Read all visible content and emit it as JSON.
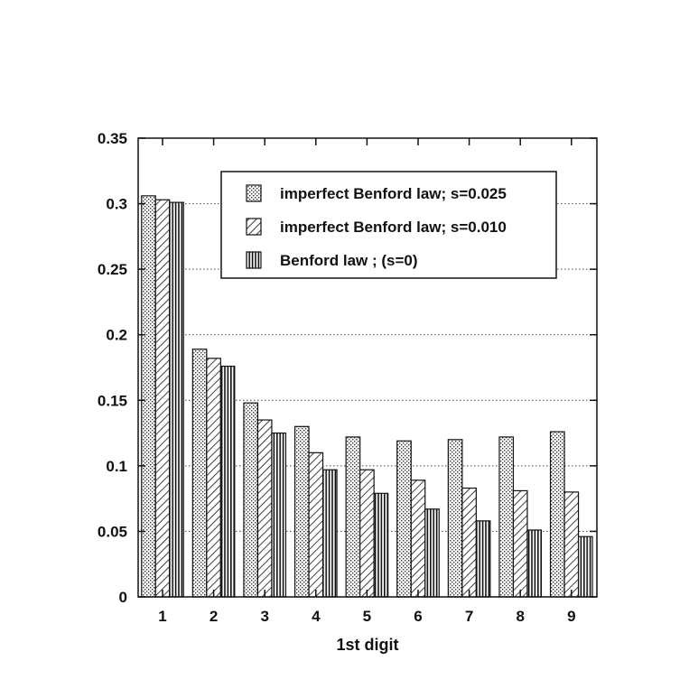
{
  "chart_data": {
    "type": "bar",
    "title": "",
    "xlabel": "1st digit",
    "ylabel": "",
    "categories": [
      "1",
      "2",
      "3",
      "4",
      "5",
      "6",
      "7",
      "8",
      "9"
    ],
    "ylim": [
      0,
      0.35
    ],
    "yticks": [
      "0",
      "0.05",
      "0.1",
      "0.15",
      "0.2",
      "0.25",
      "0.3",
      "0.35"
    ],
    "ytick_values": [
      0,
      0.05,
      0.1,
      0.15,
      0.2,
      0.25,
      0.3,
      0.35
    ],
    "grid": "horizontal dotted",
    "legend_position": "top-right",
    "series": [
      {
        "name": "imperfect Benford law; s=0.025",
        "pattern": "dots",
        "values": [
          0.306,
          0.189,
          0.148,
          0.13,
          0.122,
          0.119,
          0.12,
          0.122,
          0.126
        ]
      },
      {
        "name": "imperfect Benford law; s=0.010",
        "pattern": "diagonal",
        "values": [
          0.303,
          0.182,
          0.135,
          0.11,
          0.097,
          0.089,
          0.083,
          0.081,
          0.08
        ]
      },
      {
        "name": "Benford law ; (s=0)",
        "pattern": "vertical",
        "values": [
          0.301,
          0.176,
          0.125,
          0.097,
          0.079,
          0.067,
          0.058,
          0.051,
          0.046
        ]
      }
    ]
  }
}
